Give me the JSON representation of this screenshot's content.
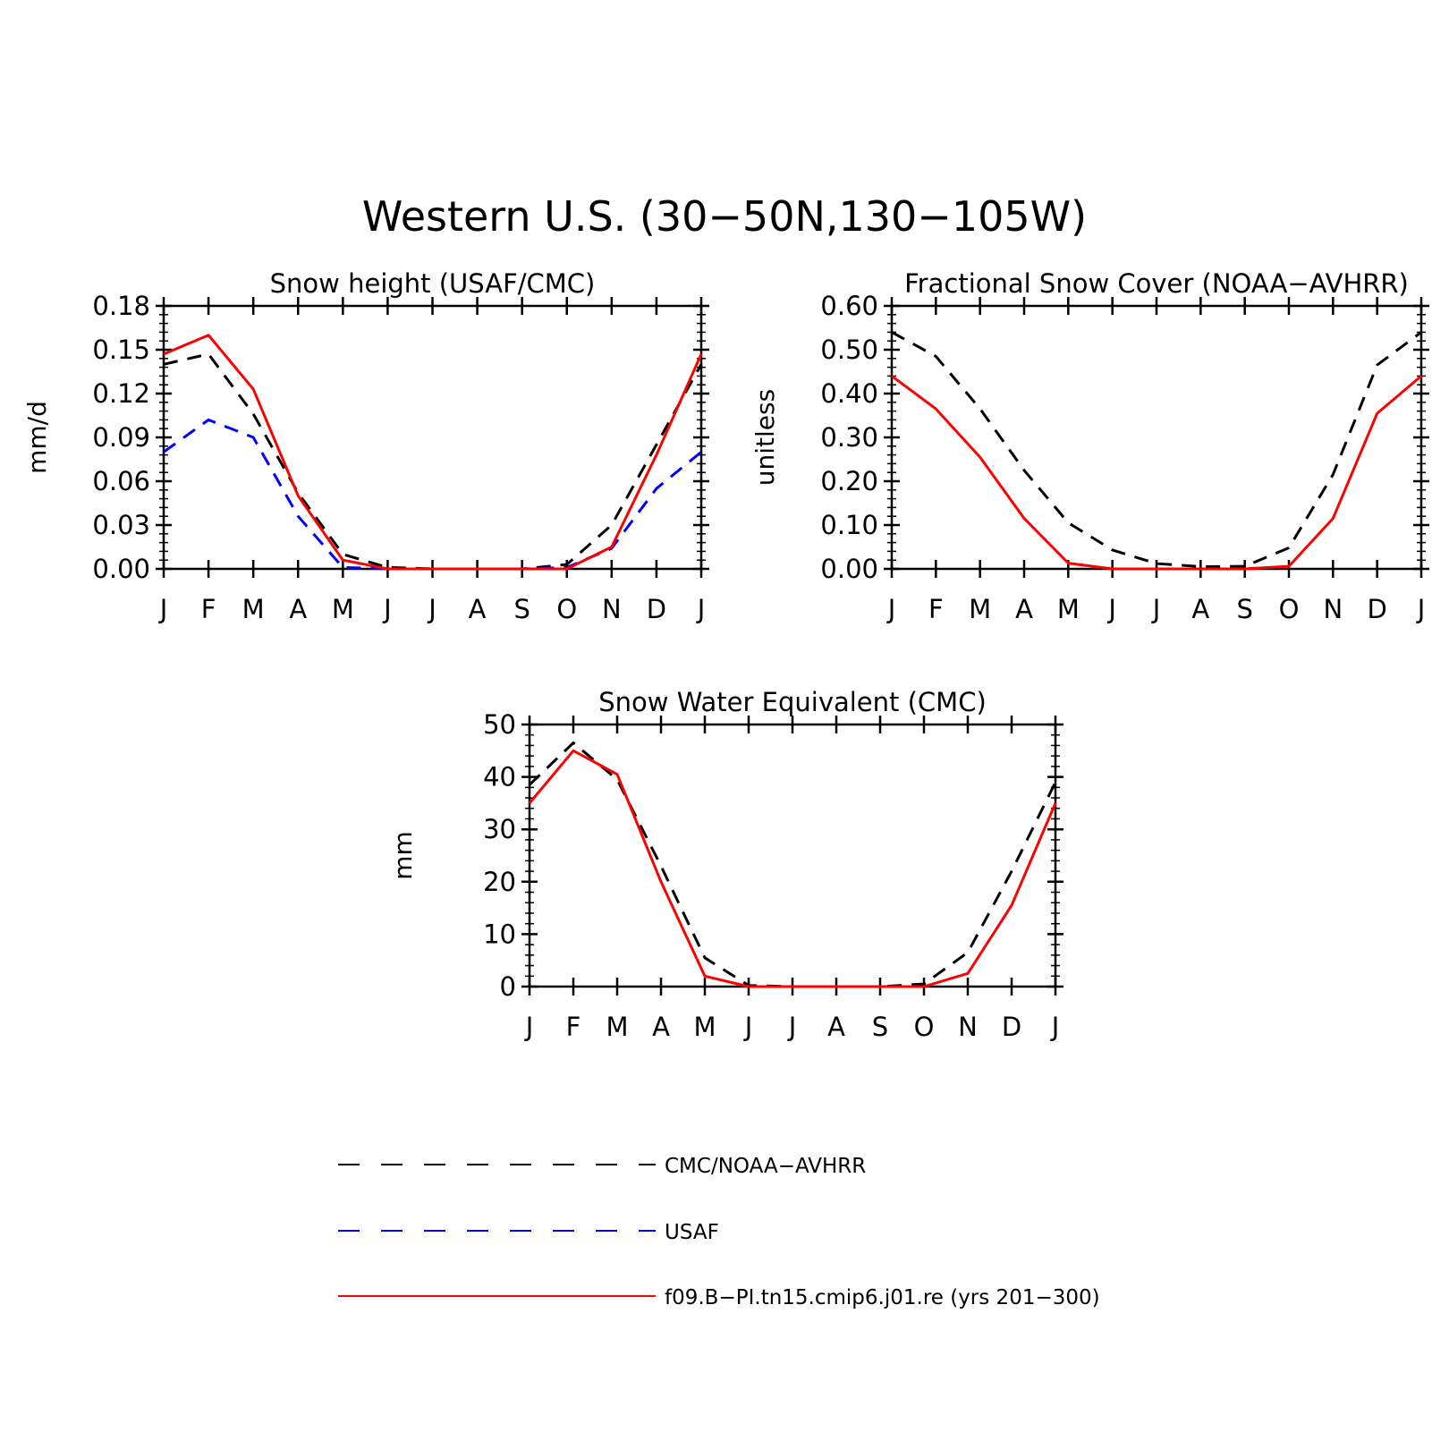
{
  "figure": {
    "title": "Western U.S. (30−50N,130−105W)"
  },
  "legend": {
    "entries": [
      {
        "label": "CMC/NOAA−AVHRR",
        "color": "#000000",
        "dash": "dashed"
      },
      {
        "label": "USAF",
        "color": "#0000ff",
        "dash": "dashed"
      },
      {
        "label": "f09.B−PI.tn15.cmip6.j01.re (yrs 201−300)",
        "color": "#ff0000",
        "dash": "solid"
      }
    ]
  },
  "chart_data": [
    {
      "type": "line",
      "title": "Snow height (USAF/CMC)",
      "xlabel": "",
      "ylabel": "mm/d",
      "categories": [
        "J",
        "F",
        "M",
        "A",
        "M",
        "J",
        "J",
        "A",
        "S",
        "O",
        "N",
        "D",
        "J"
      ],
      "ylim": [
        0,
        0.18
      ],
      "yticks": [
        "0.00",
        "0.03",
        "0.06",
        "0.09",
        "0.12",
        "0.15",
        "0.18"
      ],
      "ytick_values": [
        0,
        0.03,
        0.06,
        0.09,
        0.12,
        0.15,
        0.18
      ],
      "series": [
        {
          "legend": 0,
          "values": [
            0.14,
            0.147,
            0.106,
            0.052,
            0.01,
            0.001,
            0.0,
            0.0,
            0.0,
            0.003,
            0.03,
            0.085,
            0.14
          ]
        },
        {
          "legend": 1,
          "values": [
            0.08,
            0.102,
            0.09,
            0.036,
            0.001,
            0.0,
            0.0,
            0.0,
            0.0,
            0.001,
            0.014,
            0.055,
            0.08
          ]
        },
        {
          "legend": 2,
          "values": [
            0.147,
            0.16,
            0.123,
            0.05,
            0.006,
            0.0,
            0.0,
            0.0,
            0.0,
            0.0,
            0.015,
            0.078,
            0.147
          ]
        }
      ]
    },
    {
      "type": "line",
      "title": "Fractional Snow Cover (NOAA−AVHRR)",
      "xlabel": "",
      "ylabel": "unitless",
      "categories": [
        "J",
        "F",
        "M",
        "A",
        "M",
        "J",
        "J",
        "A",
        "S",
        "O",
        "N",
        "D",
        "J"
      ],
      "ylim": [
        0,
        0.6
      ],
      "yticks": [
        "0.00",
        "0.10",
        "0.20",
        "0.30",
        "0.40",
        "0.50",
        "0.60"
      ],
      "ytick_values": [
        0,
        0.1,
        0.2,
        0.3,
        0.4,
        0.5,
        0.6
      ],
      "series": [
        {
          "legend": 0,
          "values": [
            0.54,
            0.485,
            0.365,
            0.225,
            0.105,
            0.043,
            0.012,
            0.005,
            0.006,
            0.048,
            0.215,
            0.465,
            0.54
          ]
        },
        {
          "legend": 2,
          "values": [
            0.44,
            0.365,
            0.255,
            0.115,
            0.013,
            0.0,
            0.0,
            0.0,
            0.0,
            0.006,
            0.115,
            0.355,
            0.44
          ]
        }
      ]
    },
    {
      "type": "line",
      "title": "Snow Water Equivalent (CMC)",
      "xlabel": "",
      "ylabel": "mm",
      "categories": [
        "J",
        "F",
        "M",
        "A",
        "M",
        "J",
        "J",
        "A",
        "S",
        "O",
        "N",
        "D",
        "J"
      ],
      "ylim": [
        0,
        50
      ],
      "yticks": [
        "0",
        "10",
        "20",
        "30",
        "40",
        "50"
      ],
      "ytick_values": [
        0,
        10,
        20,
        30,
        40,
        50
      ],
      "series": [
        {
          "legend": 0,
          "values": [
            38.5,
            46.5,
            39.5,
            23.0,
            5.5,
            0.2,
            0.0,
            0.0,
            0.0,
            0.5,
            6.5,
            22.0,
            39.0
          ]
        },
        {
          "legend": 2,
          "values": [
            35.0,
            45.0,
            40.5,
            20.0,
            2.0,
            0.0,
            0.0,
            0.0,
            0.0,
            0.0,
            2.5,
            15.5,
            35.0
          ]
        }
      ]
    }
  ]
}
